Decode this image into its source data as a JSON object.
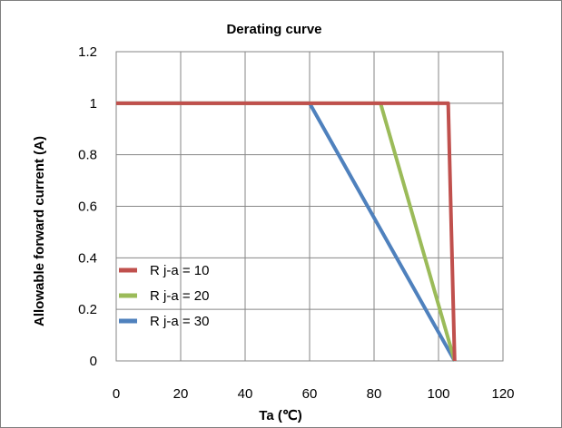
{
  "chart_data": {
    "type": "line",
    "title": "Derating curve",
    "xlabel": "Ta (℃)",
    "ylabel": "Allowable  forward  current  (A)",
    "xlim": [
      0,
      120
    ],
    "ylim": [
      0,
      1.2
    ],
    "x_ticks": [
      "0",
      "20",
      "40",
      "60",
      "80",
      "100",
      "120"
    ],
    "y_ticks": [
      "0",
      "0.2",
      "0.4",
      "0.6",
      "0.8",
      "1",
      "1.2"
    ],
    "x_tick_values": [
      0,
      20,
      40,
      60,
      80,
      100,
      120
    ],
    "y_tick_values": [
      0,
      0.2,
      0.4,
      0.6,
      0.8,
      1.0,
      1.2
    ],
    "grid": true,
    "legend_position": "bottom-left",
    "series": [
      {
        "name": "R j-a = 10",
        "color": "#c0504d",
        "x": [
          0,
          103,
          105
        ],
        "y": [
          1,
          1,
          0
        ]
      },
      {
        "name": "R j-a = 20",
        "color": "#9bbb59",
        "x": [
          0,
          82,
          105
        ],
        "y": [
          1,
          1,
          0
        ]
      },
      {
        "name": "R j-a = 30",
        "color": "#4f81bd",
        "x": [
          0,
          60,
          105
        ],
        "y": [
          1,
          1,
          0
        ]
      }
    ]
  }
}
